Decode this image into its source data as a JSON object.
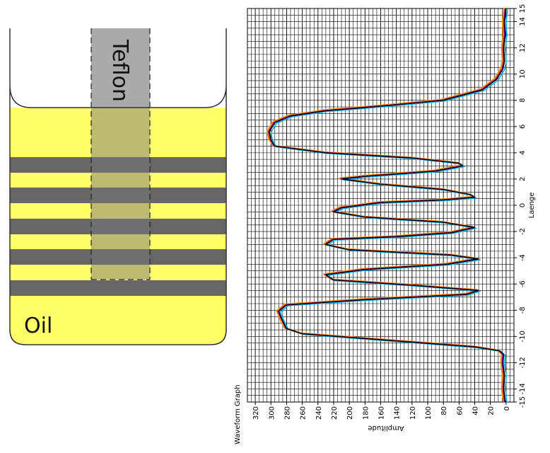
{
  "diagram": {
    "oil_label": "Oil",
    "teflon_label": "Teflon",
    "colors": {
      "oil": "#ffff6a",
      "layer": "#666666",
      "teflon": "#aaaaaa",
      "teflon_overlay": "#8f8f6a",
      "outline": "#333333"
    }
  },
  "chart_data": {
    "type": "line",
    "title": "Waveform Graph",
    "xlabel": "Amplitude",
    "ylabel": "Laenge",
    "xlim": [
      330,
      -10
    ],
    "ylim": [
      -15,
      15
    ],
    "x_ticks": [
      320,
      300,
      280,
      260,
      240,
      220,
      200,
      180,
      160,
      140,
      120,
      100,
      80,
      60,
      40,
      20,
      0
    ],
    "y_ticks": [
      15,
      14,
      12,
      10,
      8,
      6,
      4,
      2,
      0,
      -2,
      -4,
      -6,
      -8,
      -10,
      -12,
      -14,
      -15
    ],
    "grid": true,
    "series_colors": [
      "#ff8c00",
      "#00b0f0",
      "#800080",
      "#000000"
    ],
    "series": [
      {
        "points": [
          [
            0,
            15
          ],
          [
            2,
            14
          ],
          [
            1,
            13
          ],
          [
            3,
            12
          ],
          [
            2,
            11
          ],
          [
            4,
            10.4
          ],
          [
            12,
            9.6
          ],
          [
            30,
            8.8
          ],
          [
            80,
            8
          ],
          [
            150,
            7.6
          ],
          [
            230,
            7.2
          ],
          [
            275,
            6.8
          ],
          [
            295,
            6.3
          ],
          [
            302,
            5.6
          ],
          [
            300,
            5
          ],
          [
            295,
            4.5
          ],
          [
            230,
            4
          ],
          [
            120,
            3.6
          ],
          [
            60,
            3.2
          ],
          [
            55,
            3
          ],
          [
            90,
            2.6
          ],
          [
            180,
            2.2
          ],
          [
            210,
            2
          ],
          [
            160,
            1.6
          ],
          [
            80,
            1.2
          ],
          [
            45,
            0.8
          ],
          [
            40,
            0.6
          ],
          [
            80,
            0.4
          ],
          [
            160,
            0.2
          ],
          [
            210,
            -0.2
          ],
          [
            220,
            -0.5
          ],
          [
            180,
            -0.9
          ],
          [
            80,
            -1.3
          ],
          [
            40,
            -1.7
          ],
          [
            70,
            -2.1
          ],
          [
            140,
            -2.4
          ],
          [
            220,
            -2.6
          ],
          [
            230,
            -3
          ],
          [
            200,
            -3.4
          ],
          [
            70,
            -3.8
          ],
          [
            35,
            -4.1
          ],
          [
            75,
            -4.5
          ],
          [
            180,
            -4.9
          ],
          [
            230,
            -5.3
          ],
          [
            220,
            -5.7
          ],
          [
            120,
            -6.1
          ],
          [
            35,
            -6.5
          ],
          [
            50,
            -6.8
          ],
          [
            180,
            -7.2
          ],
          [
            280,
            -7.6
          ],
          [
            290,
            -8.1
          ],
          [
            285,
            -8.8
          ],
          [
            280,
            -9.4
          ],
          [
            260,
            -9.8
          ],
          [
            150,
            -10.3
          ],
          [
            40,
            -10.8
          ],
          [
            8,
            -11.1
          ],
          [
            3,
            -11.4
          ],
          [
            4,
            -12
          ],
          [
            2,
            -13
          ],
          [
            3,
            -14
          ],
          [
            1,
            -15
          ]
        ]
      }
    ]
  }
}
